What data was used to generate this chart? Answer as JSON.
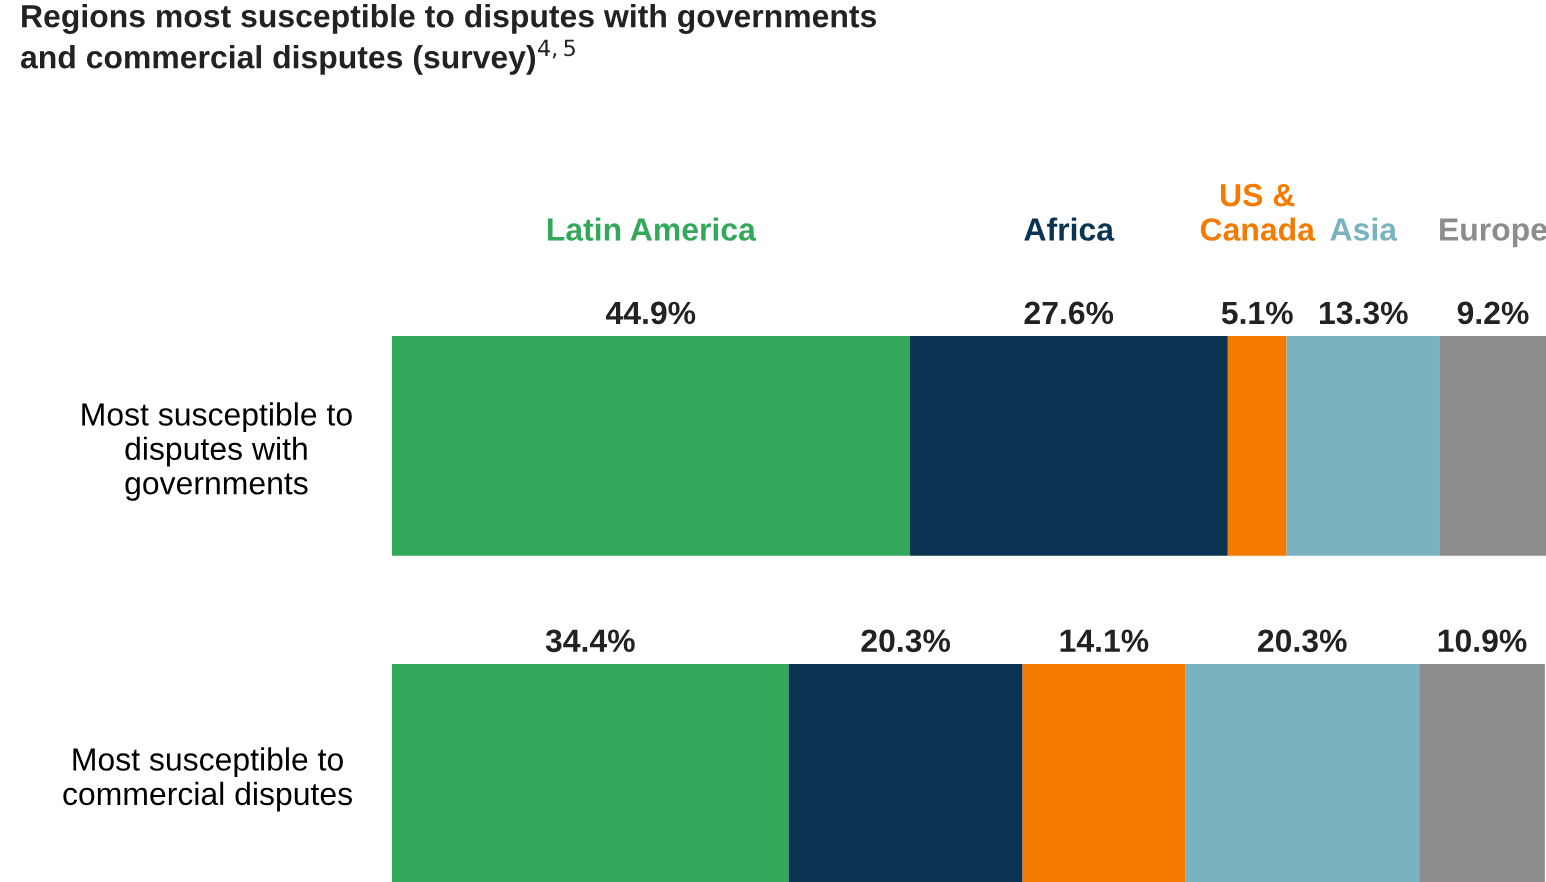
{
  "chart_data": {
    "type": "bar",
    "orientation": "horizontal",
    "stacked": true,
    "title": "Regions most susceptible to disputes with governments\nand commercial disputes (survey)$^{4,5}$",
    "categories": [
      "Most susceptible to\ndisputes with\ngovernments",
      "Most susceptible to\ncommercial disputes"
    ],
    "series": [
      {
        "name": "Latin America",
        "color": "#34a85a",
        "values": [
          44.9,
          34.4
        ],
        "value_labels": [
          "44.9%",
          "34.4%"
        ]
      },
      {
        "name": "Africa",
        "color": "#0b3454",
        "values": [
          27.6,
          20.3
        ],
        "value_labels": [
          "27.6%",
          "20.3%"
        ]
      },
      {
        "name": "US &\nCanada",
        "color": "#f47a00",
        "values": [
          5.1,
          14.1
        ],
        "value_labels": [
          "5.1%",
          "14.1%"
        ]
      },
      {
        "name": "Asia",
        "color": "#7ab3c0",
        "values": [
          13.3,
          20.3
        ],
        "value_labels": [
          "13.3%",
          "20.3%"
        ]
      },
      {
        "name": "Europe",
        "color": "#8c8c8c",
        "values": [
          9.2,
          10.9
        ],
        "value_labels": [
          "9.2%",
          "10.9%"
        ]
      }
    ]
  }
}
